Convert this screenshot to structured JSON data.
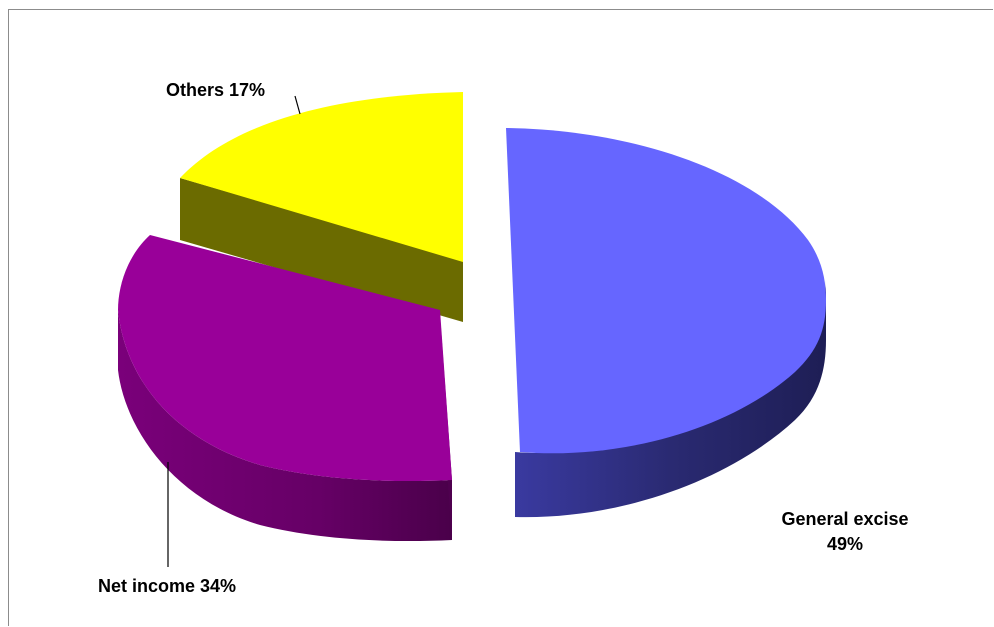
{
  "chart_data": {
    "type": "pie",
    "style": "3d-exploded",
    "title": "",
    "slices": [
      {
        "label": "General excise",
        "value": 49,
        "percent_label": "49%",
        "color": "#6666ff",
        "side_color": "#2e2e7a"
      },
      {
        "label": "Net income",
        "value": 34,
        "percent_label": "34%",
        "color": "#990099",
        "side_color": "#5a005a"
      },
      {
        "label": "Others",
        "value": 17,
        "percent_label": "17%",
        "color": "#ffff00",
        "side_color": "#6b6b00"
      }
    ],
    "labels": {
      "general_excise_line1": "General excise",
      "general_excise_line2": "49%",
      "net_income": "Net income 34%",
      "others": "Others 17%"
    },
    "legend": "none"
  }
}
